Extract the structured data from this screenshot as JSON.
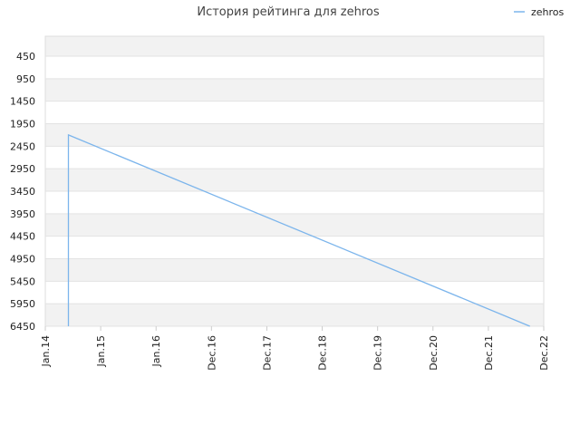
{
  "chart_data": {
    "type": "line",
    "title": "История рейтинга для zehros",
    "xlabel": "",
    "ylabel": "",
    "y_inverted": true,
    "ylim": [
      6450,
      0
    ],
    "y_ticks": [
      450,
      950,
      1450,
      1950,
      2450,
      2950,
      3450,
      3950,
      4450,
      4950,
      5450,
      5950,
      6450
    ],
    "x_ticks": [
      "Jan.14",
      "Jan.15",
      "Jan.16",
      "Dec.16",
      "Dec.17",
      "Dec.18",
      "Dec.19",
      "Dec.20",
      "Dec.21",
      "Dec.22"
    ],
    "grid": true,
    "legend_position": "top-right",
    "colors": {
      "series": "#7cb5ec",
      "band": "#f2f2f2",
      "grid": "#dddddd"
    },
    "series": [
      {
        "name": "zehros",
        "points": [
          {
            "x": "Jun.14",
            "y": 6450
          },
          {
            "x": "Jun.14",
            "y": 2200
          },
          {
            "x": "Sep.22",
            "y": 6450
          }
        ]
      }
    ]
  }
}
